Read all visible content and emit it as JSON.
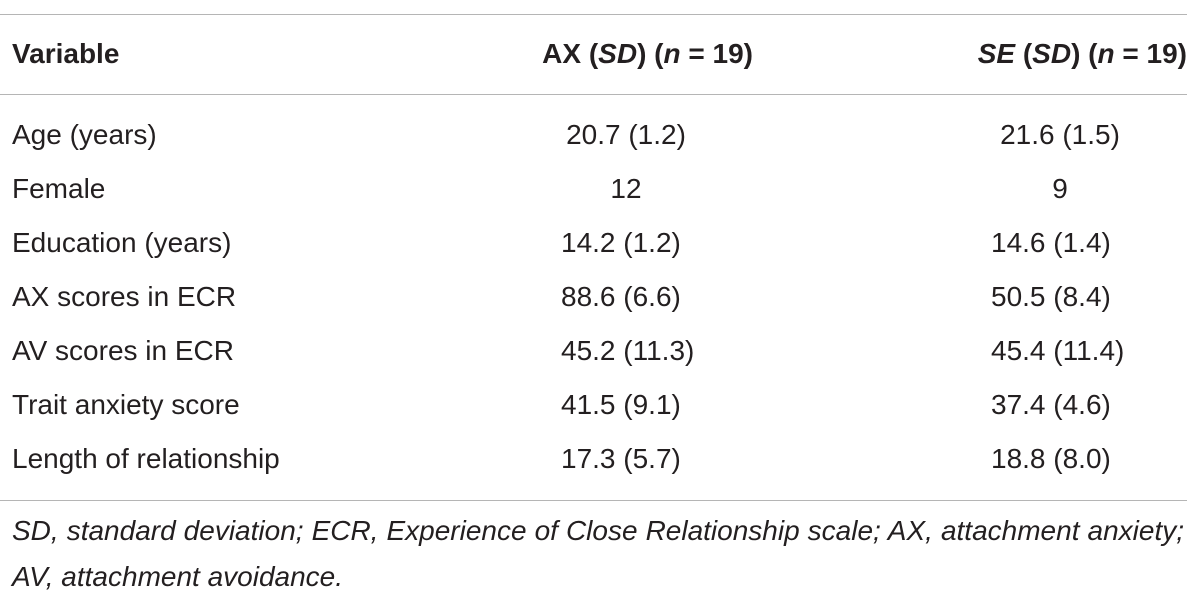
{
  "table": {
    "headers": {
      "variable": "Variable",
      "ax_prefix": "AX (",
      "ax_sd": "SD",
      "ax_mid": ") (",
      "ax_n": "n",
      "ax_suffix": " = 19)",
      "se_label": "SE",
      "se_open": " (",
      "se_sd": "SD",
      "se_mid": ") (",
      "se_n": "n",
      "se_suffix": " = 19)"
    },
    "rows": [
      {
        "variable": "Age (years)",
        "ax": "20.7 (1.2)",
        "se": "21.6 (1.5)"
      },
      {
        "variable": "Female",
        "ax": "12",
        "se": "9"
      },
      {
        "variable": "Education (years)",
        "ax": "14.2 (1.2)",
        "se": "14.6 (1.4)"
      },
      {
        "variable": "AX scores in ECR",
        "ax": "88.6 (6.6)",
        "se": "50.5 (8.4)"
      },
      {
        "variable": "AV scores in ECR",
        "ax": "45.2 (11.3)",
        "se": "45.4 (11.4)"
      },
      {
        "variable": "Trait anxiety score",
        "ax": "41.5 (9.1)",
        "se": "37.4 (4.6)"
      },
      {
        "variable": "Length of relationship",
        "ax": "17.3 (5.7)",
        "se": "18.8 (8.0)"
      }
    ],
    "note": "SD, standard deviation; ECR, Experience of Close Relationship scale; AX, attachment anxiety; AV, attachment avoidance."
  }
}
